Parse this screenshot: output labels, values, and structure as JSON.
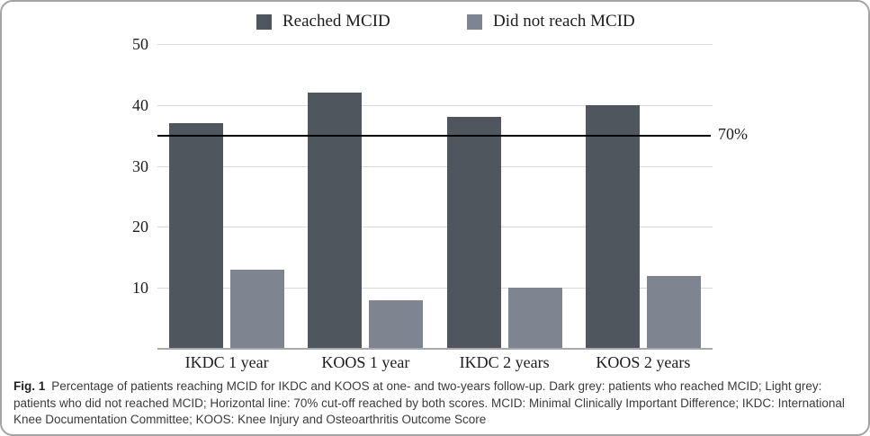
{
  "figure": {
    "caption_label": "Fig. 1",
    "caption_text": "Percentage of patients reaching MCID for IKDC and KOOS at one- and two-years follow-up. Dark grey: patients who reached MCID; Light grey: patients who did not reached MCID; Horizontal line: 70% cut-off reached by both scores. MCID: Minimal Clinically Important Difference; IKDC: International Knee Documentation Committee; KOOS: Knee Injury and Osteoarthritis Outcome Score"
  },
  "chart_data": {
    "type": "bar",
    "categories": [
      "IKDC 1 year",
      "KOOS 1 year",
      "IKDC 2 years",
      "KOOS 2 years"
    ],
    "series": [
      {
        "name": "Reached MCID",
        "color": "#50565e",
        "values": [
          37,
          42,
          38,
          40
        ]
      },
      {
        "name": "Did not reach MCID",
        "color": "#7e8591",
        "values": [
          13,
          8,
          10,
          12
        ]
      }
    ],
    "title": "",
    "xlabel": "",
    "ylabel": "",
    "ylim": [
      0,
      50
    ],
    "yticks": [
      10,
      20,
      30,
      40,
      50
    ],
    "grid": true,
    "legend_position": "top",
    "reference_line": {
      "value": 35,
      "label": "70%",
      "color": "#000000"
    }
  },
  "colors": {
    "reached": "#50565e",
    "not_reached": "#7e8591",
    "gridline": "#d9d9d9",
    "axis": "#a9a9a9",
    "reference": "#000000"
  }
}
